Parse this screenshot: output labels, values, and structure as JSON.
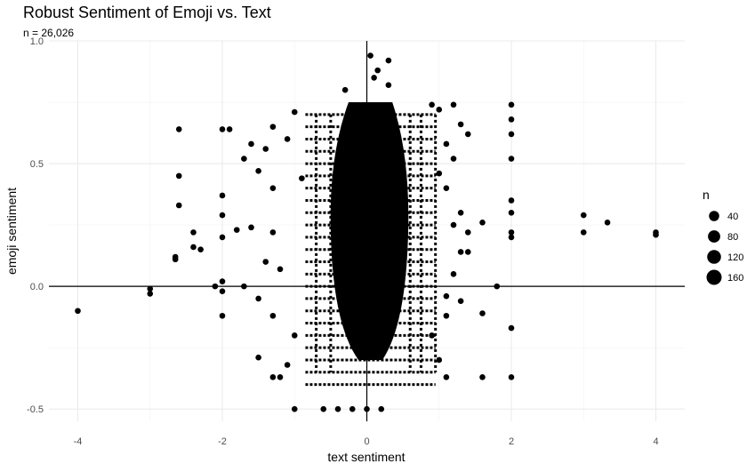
{
  "chart_data": {
    "type": "scatter",
    "title": "Robust Sentiment of Emoji vs. Text",
    "subtitle": "n = 26,026",
    "xlabel": "text sentiment",
    "ylabel": "emoji sentiment",
    "xlim": [
      -4.4,
      4.4
    ],
    "ylim": [
      -0.55,
      1.0
    ],
    "x_ticks": [
      -4,
      -2,
      0,
      2,
      4
    ],
    "y_ticks": [
      -0.5,
      0.0,
      0.5,
      1.0
    ],
    "x_tick_labels": [
      "-4",
      "-2",
      "0",
      "2",
      "4"
    ],
    "y_tick_labels": [
      "-0.5",
      "0.0",
      "0.5",
      "1.0"
    ],
    "grid": true,
    "reference_lines": {
      "x": 0,
      "y": 0
    },
    "legend": {
      "title": "n",
      "position": "right",
      "entries": [
        {
          "label": "40",
          "value": 40
        },
        {
          "label": "80",
          "value": 80
        },
        {
          "label": "120",
          "value": 120
        },
        {
          "label": "160",
          "value": 160
        }
      ]
    },
    "dense_core": {
      "x_range": [
        -0.5,
        0.6
      ],
      "y_range": [
        -0.3,
        0.75
      ]
    },
    "points": [
      {
        "x": -4.0,
        "y": -0.1
      },
      {
        "x": -3.0,
        "y": -0.01
      },
      {
        "x": -3.0,
        "y": -0.03
      },
      {
        "x": -2.6,
        "y": 0.64
      },
      {
        "x": -2.6,
        "y": 0.45
      },
      {
        "x": -2.6,
        "y": 0.33
      },
      {
        "x": -2.4,
        "y": 0.22
      },
      {
        "x": -2.4,
        "y": 0.16
      },
      {
        "x": -2.3,
        "y": 0.15
      },
      {
        "x": -2.65,
        "y": 0.12
      },
      {
        "x": -2.65,
        "y": 0.11
      },
      {
        "x": -2.1,
        "y": 0.0
      },
      {
        "x": -2.0,
        "y": 0.64
      },
      {
        "x": -1.9,
        "y": 0.64
      },
      {
        "x": -2.0,
        "y": 0.37
      },
      {
        "x": -2.0,
        "y": 0.29
      },
      {
        "x": -2.0,
        "y": 0.2
      },
      {
        "x": -2.0,
        "y": 0.02
      },
      {
        "x": -2.0,
        "y": -0.02
      },
      {
        "x": -2.0,
        "y": -0.12
      },
      {
        "x": -1.7,
        "y": 0.52
      },
      {
        "x": -1.6,
        "y": 0.58
      },
      {
        "x": -1.5,
        "y": 0.47
      },
      {
        "x": -1.4,
        "y": 0.56
      },
      {
        "x": -1.3,
        "y": 0.65
      },
      {
        "x": -1.3,
        "y": 0.4
      },
      {
        "x": -1.8,
        "y": 0.23
      },
      {
        "x": -1.6,
        "y": 0.24
      },
      {
        "x": -1.7,
        "y": 0.0
      },
      {
        "x": -1.3,
        "y": 0.22
      },
      {
        "x": -1.4,
        "y": 0.1
      },
      {
        "x": -1.5,
        "y": -0.05
      },
      {
        "x": -1.3,
        "y": -0.12
      },
      {
        "x": -1.5,
        "y": -0.29
      },
      {
        "x": -1.3,
        "y": -0.37
      },
      {
        "x": -1.2,
        "y": -0.37
      },
      {
        "x": -1.1,
        "y": -0.32
      },
      {
        "x": -1.0,
        "y": -0.5
      },
      {
        "x": -1.1,
        "y": 0.6
      },
      {
        "x": -1.0,
        "y": 0.71
      },
      {
        "x": -0.9,
        "y": 0.44
      },
      {
        "x": -1.0,
        "y": -0.2
      },
      {
        "x": -1.2,
        "y": 0.07
      },
      {
        "x": -0.6,
        "y": -0.5
      },
      {
        "x": -0.4,
        "y": -0.5
      },
      {
        "x": -0.2,
        "y": -0.5
      },
      {
        "x": 0.0,
        "y": -0.5
      },
      {
        "x": 0.2,
        "y": -0.5
      },
      {
        "x": 0.3,
        "y": 0.92
      },
      {
        "x": 0.05,
        "y": 0.94
      },
      {
        "x": 0.1,
        "y": 0.85
      },
      {
        "x": 0.3,
        "y": 0.82
      },
      {
        "x": 0.15,
        "y": 0.88
      },
      {
        "x": -0.3,
        "y": 0.8
      },
      {
        "x": 0.9,
        "y": 0.74
      },
      {
        "x": 1.0,
        "y": 0.72
      },
      {
        "x": 1.2,
        "y": 0.74
      },
      {
        "x": 1.3,
        "y": 0.66
      },
      {
        "x": 1.4,
        "y": 0.62
      },
      {
        "x": 1.1,
        "y": 0.58
      },
      {
        "x": 1.2,
        "y": 0.52
      },
      {
        "x": 1.0,
        "y": 0.46
      },
      {
        "x": 1.1,
        "y": 0.4
      },
      {
        "x": 1.3,
        "y": 0.3
      },
      {
        "x": 1.2,
        "y": 0.25
      },
      {
        "x": 1.4,
        "y": 0.22
      },
      {
        "x": 1.6,
        "y": 0.26
      },
      {
        "x": 1.3,
        "y": 0.14
      },
      {
        "x": 1.4,
        "y": 0.14
      },
      {
        "x": 1.2,
        "y": 0.05
      },
      {
        "x": 1.8,
        "y": 0.0
      },
      {
        "x": 1.1,
        "y": -0.04
      },
      {
        "x": 1.3,
        "y": -0.06
      },
      {
        "x": 1.6,
        "y": -0.11
      },
      {
        "x": 1.1,
        "y": -0.12
      },
      {
        "x": 0.9,
        "y": -0.2
      },
      {
        "x": 1.0,
        "y": -0.3
      },
      {
        "x": 1.1,
        "y": -0.37
      },
      {
        "x": 1.6,
        "y": -0.37
      },
      {
        "x": 2.0,
        "y": 0.74
      },
      {
        "x": 2.0,
        "y": 0.68
      },
      {
        "x": 2.0,
        "y": 0.62
      },
      {
        "x": 2.0,
        "y": 0.52
      },
      {
        "x": 2.0,
        "y": 0.35
      },
      {
        "x": 2.0,
        "y": 0.3
      },
      {
        "x": 2.0,
        "y": 0.22
      },
      {
        "x": 2.0,
        "y": 0.2
      },
      {
        "x": 2.0,
        "y": -0.17
      },
      {
        "x": 2.0,
        "y": -0.37
      },
      {
        "x": 3.0,
        "y": 0.29
      },
      {
        "x": 3.0,
        "y": 0.22
      },
      {
        "x": 3.33,
        "y": 0.26
      },
      {
        "x": 4.0,
        "y": 0.22
      },
      {
        "x": 4.0,
        "y": 0.21
      }
    ]
  }
}
